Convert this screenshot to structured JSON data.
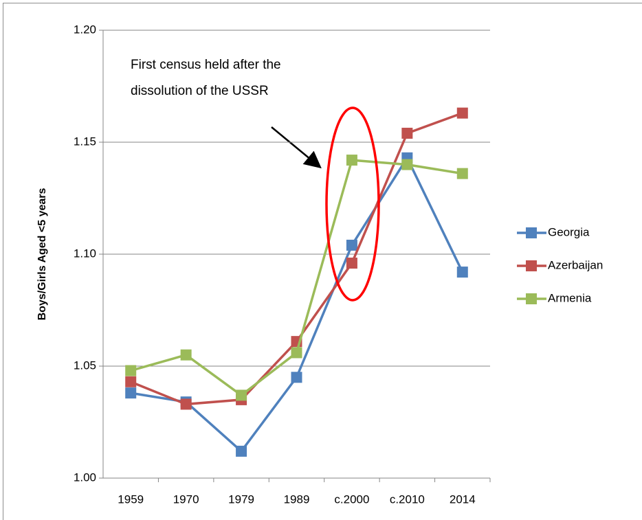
{
  "chart_data": {
    "type": "line",
    "y_label": "Boys/Girls Aged <5 years",
    "annotation": [
      "First census held after the",
      "dissolution of the USSR"
    ],
    "categories": [
      "1959",
      "1970",
      "1979",
      "1989",
      "c.2000",
      "c.2010",
      "2014"
    ],
    "series": [
      {
        "name": "Georgia",
        "color": "#4f81bd",
        "values": [
          1.038,
          1.034,
          1.012,
          1.045,
          1.104,
          1.143,
          1.092
        ]
      },
      {
        "name": "Azerbaijan",
        "color": "#c0504d",
        "values": [
          1.043,
          1.033,
          1.035,
          1.061,
          1.096,
          1.154,
          1.163
        ]
      },
      {
        "name": "Armenia",
        "color": "#9bbb59",
        "values": [
          1.048,
          1.055,
          1.037,
          1.056,
          1.142,
          1.14,
          1.136
        ]
      }
    ],
    "ylim": [
      1.0,
      1.2
    ],
    "yticks": [
      {
        "value": 1.0,
        "label": "1.00"
      },
      {
        "value": 1.05,
        "label": "1.05"
      },
      {
        "value": 1.1,
        "label": "1.10"
      },
      {
        "value": 1.15,
        "label": "1.15"
      },
      {
        "value": 1.2,
        "label": "1.20"
      }
    ],
    "grid": true,
    "legend": "right"
  }
}
